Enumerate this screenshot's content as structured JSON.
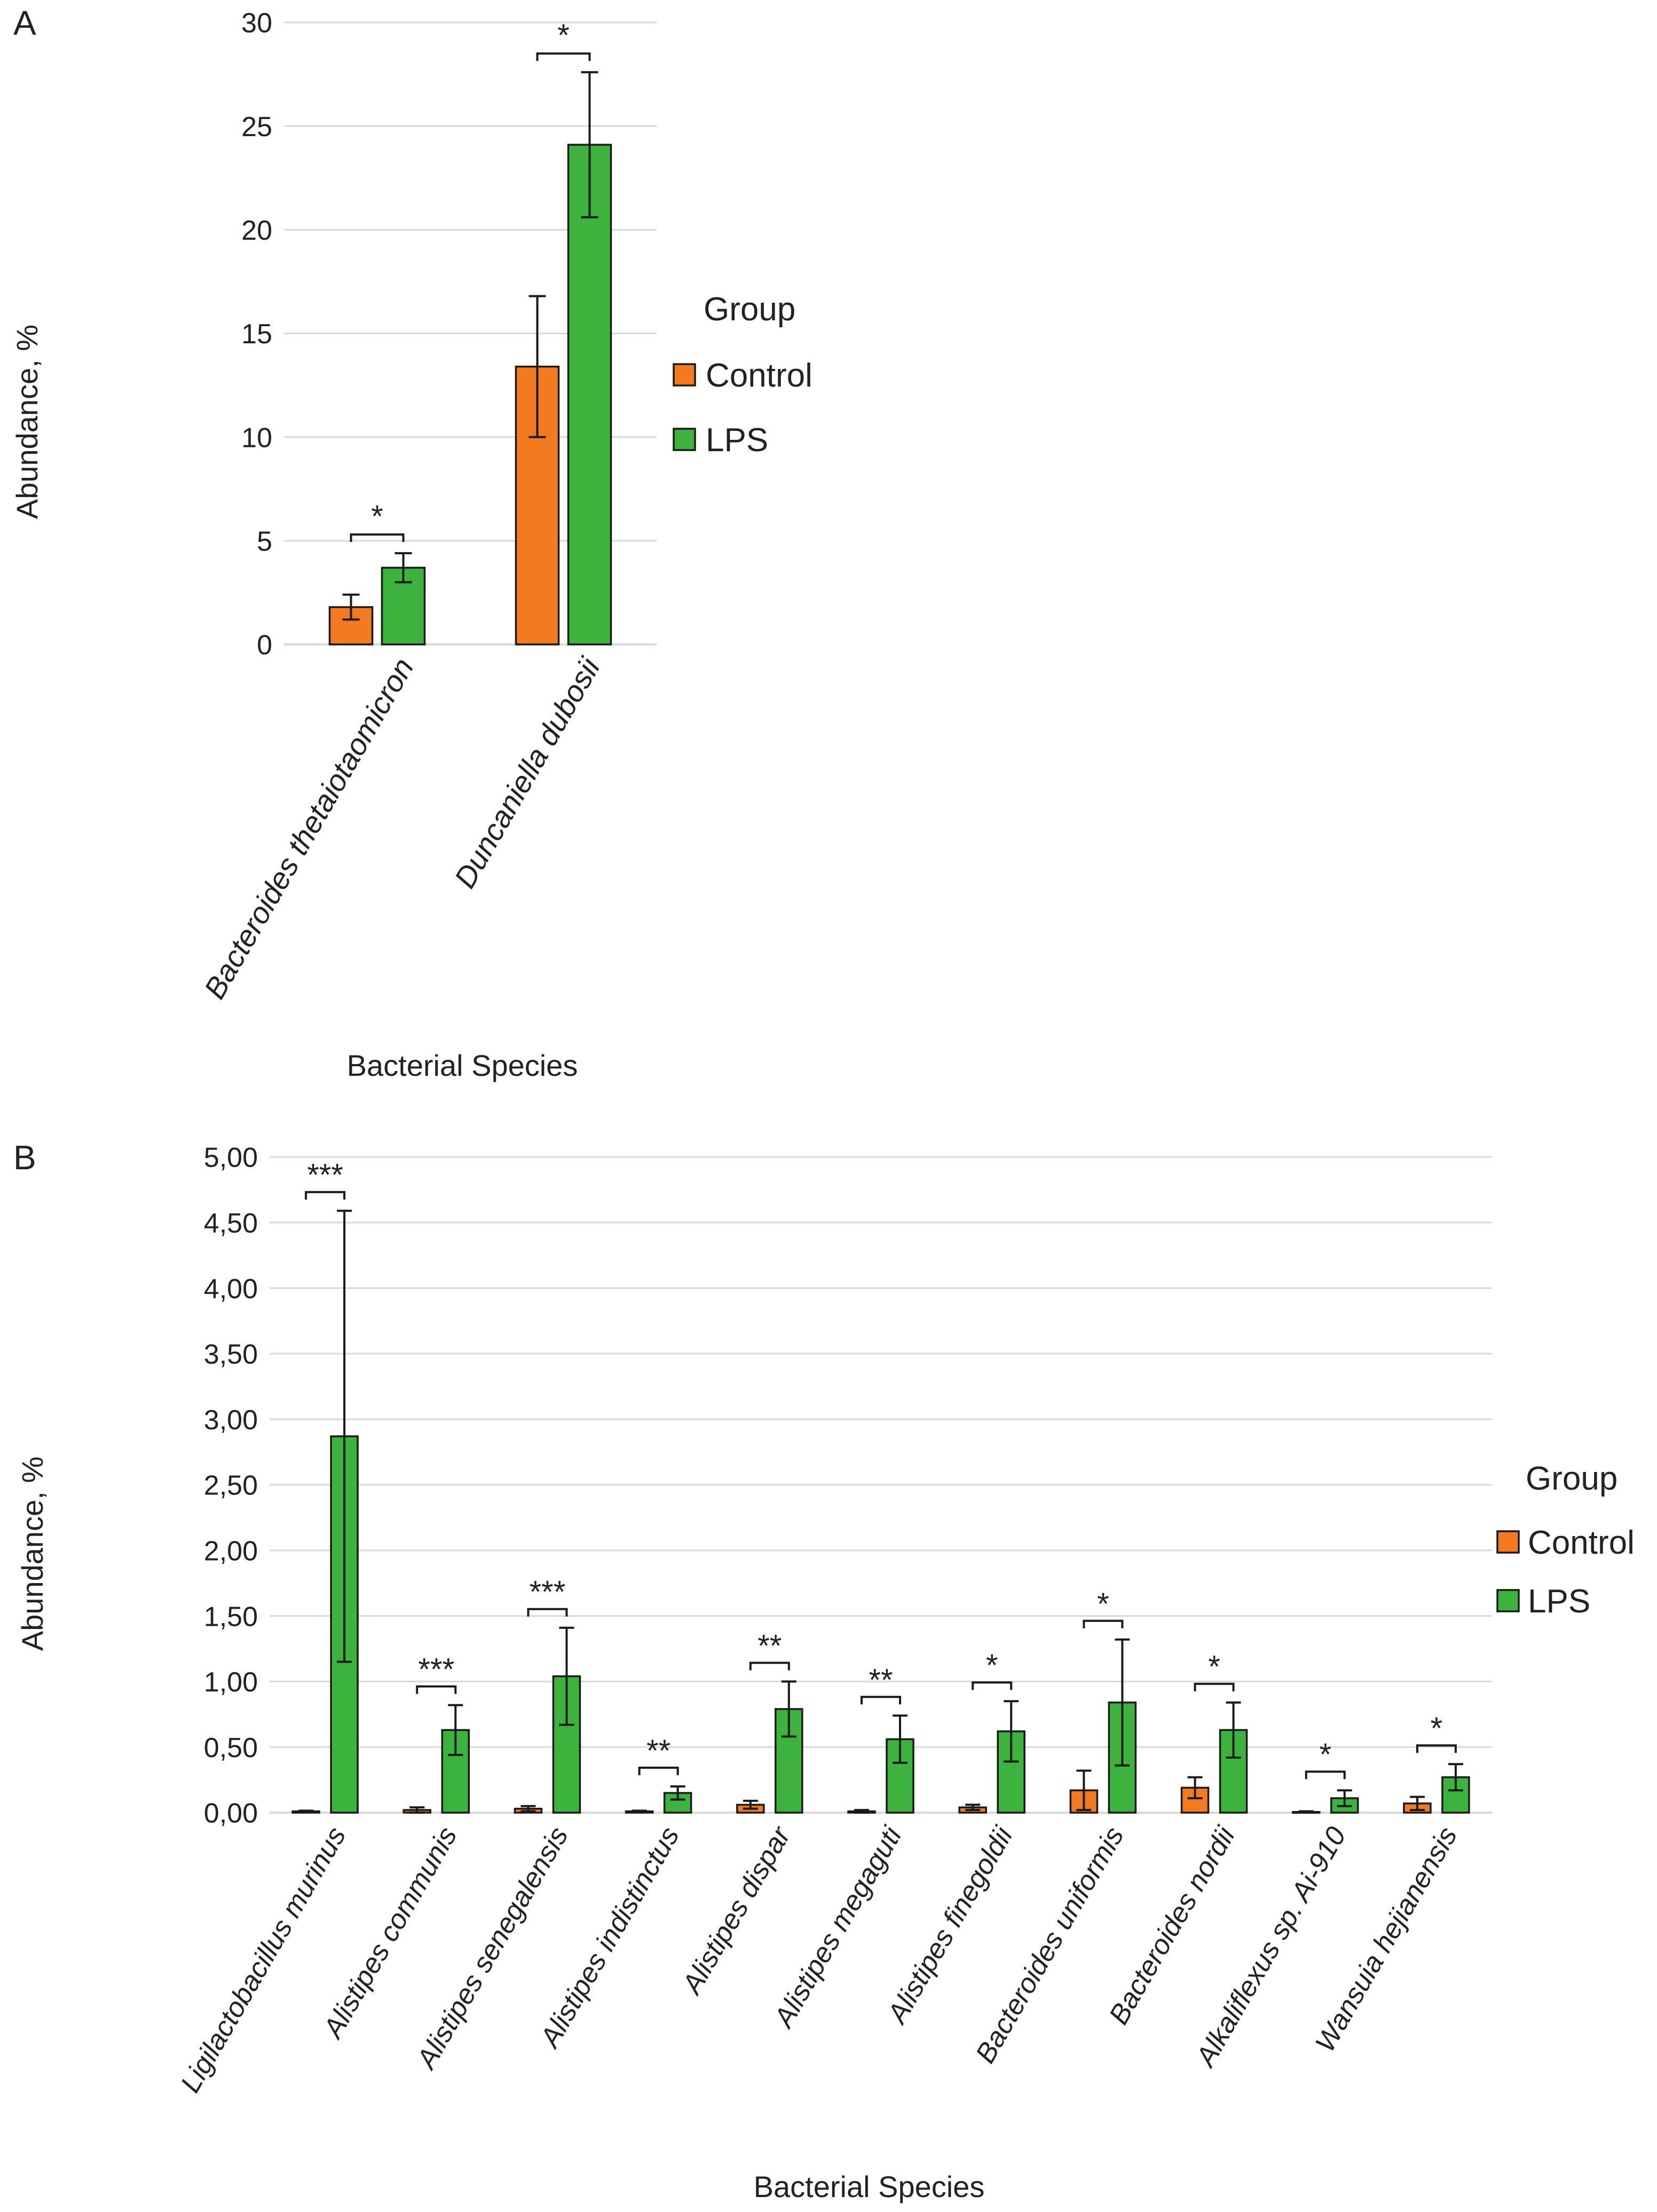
{
  "chart_data": [
    {
      "panel_label": "A",
      "type": "bar",
      "xlabel": "Bacterial Species",
      "ylabel": "Abundance, %",
      "ylim": [
        0,
        30
      ],
      "yticks": [
        0,
        5,
        10,
        15,
        20,
        25,
        30
      ],
      "ytick_labels": [
        "0",
        "5",
        "10",
        "15",
        "20",
        "25",
        "30"
      ],
      "grid": true,
      "legend": {
        "title": "Group",
        "position": "right"
      },
      "categories": [
        "Bacteroides thetaiotaomicron",
        "Duncaniella dubosii"
      ],
      "series": [
        {
          "name": "Control",
          "color": "#F47A20",
          "values": [
            1.8,
            13.4
          ],
          "errors": [
            0.6,
            3.4
          ]
        },
        {
          "name": "LPS",
          "color": "#3CB33C",
          "values": [
            3.7,
            24.1
          ],
          "errors": [
            0.7,
            3.5
          ]
        }
      ],
      "significance": [
        "*",
        "*"
      ]
    },
    {
      "panel_label": "B",
      "type": "bar",
      "xlabel": "Bacterial Species",
      "ylabel": "Abundance, %",
      "ylim": [
        0,
        5
      ],
      "yticks": [
        0,
        0.5,
        1,
        1.5,
        2,
        2.5,
        3,
        3.5,
        4,
        4.5,
        5
      ],
      "ytick_labels": [
        "0,00",
        "0,50",
        "1,00",
        "1,50",
        "2,00",
        "2,50",
        "3,00",
        "3,50",
        "4,00",
        "4,50",
        "5,00"
      ],
      "grid": true,
      "legend": {
        "title": "Group",
        "position": "right"
      },
      "categories": [
        "Ligilactobacillus murinus",
        "Alistipes communis",
        "Alistipes senegalensis",
        "Alistipes indistinctus",
        "Alistipes dispar",
        "Alistipes megaguti",
        "Alistipes finegoldii",
        "Bacteroides uniformis",
        "Bacteroides nordii",
        "Alkaliflexus sp. Ai-910",
        "Wansuia hejianensis"
      ],
      "series": [
        {
          "name": "Control",
          "color": "#F47A20",
          "values": [
            0.01,
            0.02,
            0.03,
            0.01,
            0.06,
            0.01,
            0.04,
            0.17,
            0.19,
            0.005,
            0.07
          ],
          "errors": [
            0.005,
            0.02,
            0.02,
            0.005,
            0.03,
            0.01,
            0.02,
            0.15,
            0.08,
            0.005,
            0.05
          ]
        },
        {
          "name": "LPS",
          "color": "#3CB33C",
          "values": [
            2.87,
            0.63,
            1.04,
            0.15,
            0.79,
            0.56,
            0.62,
            0.84,
            0.63,
            0.11,
            0.27
          ],
          "errors": [
            1.72,
            0.19,
            0.37,
            0.05,
            0.21,
            0.18,
            0.23,
            0.48,
            0.21,
            0.06,
            0.1
          ]
        }
      ],
      "significance": [
        "***",
        "***",
        "***",
        "**",
        "**",
        "**",
        "*",
        "*",
        "*",
        "*",
        "*"
      ]
    }
  ]
}
